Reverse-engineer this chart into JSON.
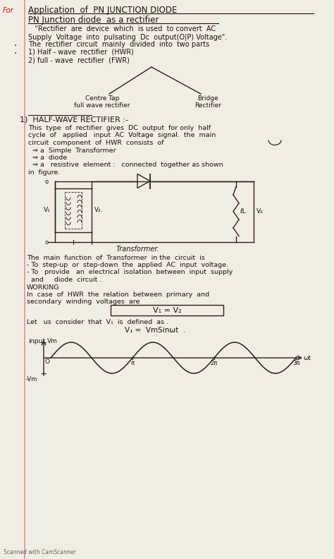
{
  "paper_color": "#f2ede3",
  "title": "Application  of  PN JUNCTION DIODE",
  "subtitle": "PN Junction diode  as a rectifier",
  "for_label": "For",
  "lines": [
    "   \"Rectifier  are  device  which  is used  to convert  AC",
    "Supply  Voltage  into  pulsating  Dc  output(O|P) Voltage\".",
    "The  rectifier  circuit  mainly  divided  into  two parts",
    "1) Half - wave  rectifier  (HWR)",
    "2) full - wave  rectifier  (FWR)"
  ],
  "tree_left": "Centre Tap\nfull wave rectifier",
  "tree_right": "Bridge\nRectifier",
  "section1_title": "1)  HALF-WAVE RECTIFIER :-",
  "section1_lines": [
    "This  type  of  rectifier  gives  DC  output  for only  half",
    "cycle  of   applied   input  AC  Voltage  signal.  the  main",
    "circuit  component  of  HWR  consists  of",
    "  ⇒ a  Simple  Transformer",
    "  ⇒ a  diode",
    "  ⇒ a   resistive  element :   connected  together as shown",
    "in  figure."
  ],
  "transformer_label": "Transformer.",
  "transformer_lines": [
    "The  main  function  of  Transformer  in the  circuit  is",
    "- To  step-up  or  step-down  the  applied  AC  input  voltage.",
    "- To   provide   an  electrical  isolation  between  input  supply",
    "  and     diode  circuit .",
    "WORKING",
    "In  case  of  HWR  the  relation  between  primary  and",
    "secondary  winding  voltages  are"
  ],
  "formula": "V₁ = V₂",
  "consider_line": "Let   us  consider  that  V₁  is  defined  as .",
  "v1_eq": "V₁ =  VmSinωt  .",
  "input_label": "input",
  "vm_label": "Vm",
  "neg_vm_label": "-Vm",
  "wt_label": "ωt",
  "wave_ticks": [
    "π",
    "2π",
    "3π"
  ],
  "scanned_text": "Scanned with CamScanner",
  "text_color": "#1a1208",
  "red_color": "#bb1100",
  "line_color": "#2a2010"
}
